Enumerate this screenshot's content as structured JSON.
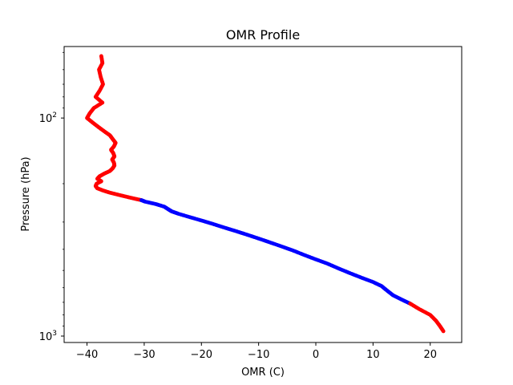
{
  "chart_data": {
    "type": "scatter",
    "title": "OMR Profile",
    "xlabel": "OMR (C)",
    "ylabel": "Pressure (hPa)",
    "xlim": [
      -44,
      25.5
    ],
    "ylim": [
      1070,
      47
    ],
    "y_scale": "log",
    "y_inverted": true,
    "grid": false,
    "x_ticks": [
      {
        "value": -40,
        "label": "−40"
      },
      {
        "value": -30,
        "label": "−30"
      },
      {
        "value": -20,
        "label": "−20"
      },
      {
        "value": -10,
        "label": "−10"
      },
      {
        "value": 0,
        "label": "0"
      },
      {
        "value": 10,
        "label": "10"
      },
      {
        "value": 20,
        "label": "20"
      }
    ],
    "y_ticks": [
      {
        "value": 1000,
        "base": "10",
        "exp": "3"
      },
      {
        "value": 100,
        "base": "10",
        "exp": "2"
      }
    ],
    "series": [
      {
        "color": "#ff0000",
        "points": [
          [
            -37.5,
            52
          ],
          [
            -37.3,
            56
          ],
          [
            -37.9,
            60
          ],
          [
            -37.6,
            65
          ],
          [
            -37.2,
            70
          ],
          [
            -37.8,
            75
          ],
          [
            -38.5,
            80
          ],
          [
            -37.3,
            85
          ],
          [
            -38.8,
            90
          ],
          [
            -39.5,
            95
          ],
          [
            -40.0,
            100
          ],
          [
            -39.0,
            105
          ],
          [
            -38.0,
            110
          ],
          [
            -37.0,
            115
          ],
          [
            -36.0,
            120
          ],
          [
            -35.5,
            125
          ],
          [
            -35.0,
            130
          ],
          [
            -35.3,
            135
          ],
          [
            -35.8,
            140
          ],
          [
            -35.4,
            145
          ],
          [
            -35.2,
            150
          ],
          [
            -35.6,
            155
          ],
          [
            -35.3,
            160
          ],
          [
            -35.2,
            165
          ],
          [
            -35.5,
            170
          ],
          [
            -36.0,
            175
          ],
          [
            -37.0,
            180
          ],
          [
            -37.8,
            185
          ],
          [
            -38.2,
            190
          ],
          [
            -37.5,
            195
          ],
          [
            -38.3,
            200
          ],
          [
            -38.5,
            205
          ],
          [
            -38.2,
            210
          ],
          [
            -37.2,
            215
          ],
          [
            -36.0,
            220
          ],
          [
            -34.5,
            225
          ],
          [
            -33.0,
            230
          ],
          [
            -31.5,
            235
          ],
          [
            -30.5,
            238
          ]
        ]
      },
      {
        "color": "#0000ff",
        "points": [
          [
            -30.5,
            238
          ],
          [
            -29.8,
            242
          ],
          [
            -28.0,
            248
          ],
          [
            -26.5,
            255
          ],
          [
            -25.8,
            262
          ],
          [
            -25.2,
            268
          ],
          [
            -24.0,
            275
          ],
          [
            -22.0,
            285
          ],
          [
            -20.0,
            295
          ],
          [
            -18.0,
            306
          ],
          [
            -16.0,
            318
          ],
          [
            -14.0,
            330
          ],
          [
            -12.0,
            343
          ],
          [
            -10.0,
            357
          ],
          [
            -8.0,
            372
          ],
          [
            -6.0,
            388
          ],
          [
            -4.0,
            405
          ],
          [
            -2.0,
            425
          ],
          [
            0.0,
            445
          ],
          [
            2.0,
            465
          ],
          [
            4.0,
            490
          ],
          [
            6.0,
            515
          ],
          [
            8.0,
            540
          ],
          [
            10.0,
            565
          ],
          [
            11.5,
            590
          ],
          [
            12.5,
            620
          ],
          [
            13.5,
            650
          ],
          [
            15.0,
            680
          ],
          [
            16.5,
            710
          ]
        ]
      },
      {
        "color": "#ff0000",
        "points": [
          [
            16.5,
            710
          ],
          [
            18.0,
            750
          ],
          [
            20.0,
            800
          ],
          [
            21.0,
            850
          ],
          [
            21.7,
            900
          ],
          [
            22.3,
            950
          ]
        ]
      }
    ]
  }
}
